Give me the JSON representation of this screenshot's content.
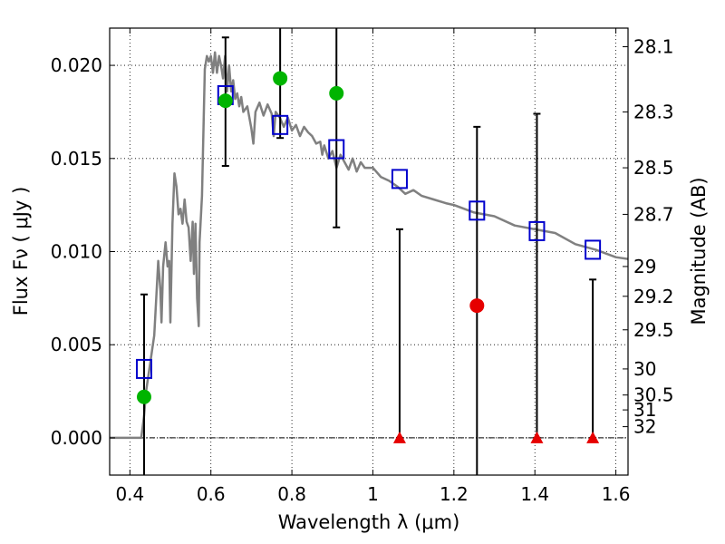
{
  "chart_data": {
    "type": "scatter",
    "xlabel": "Wavelength  λ (μm)",
    "ylabel": "Flux  Fν  ( μJy )",
    "y2label": "Magnitude (AB)",
    "xlim": [
      0.35,
      1.63
    ],
    "ylim": [
      -0.002,
      0.022
    ],
    "grid": true,
    "x_ticks": [
      0.4,
      0.6,
      0.8,
      1.0,
      1.2,
      1.4,
      1.6
    ],
    "x_tick_labels": [
      "0.4",
      "0.6",
      "0.8",
      "1",
      "1.2",
      "1.4",
      "1.6"
    ],
    "y_ticks": [
      0.0,
      0.005,
      0.01,
      0.015,
      0.02
    ],
    "y_tick_labels": [
      "0.000",
      "0.005",
      "0.010",
      "0.015",
      "0.020"
    ],
    "mag_ticks": [
      {
        "label": "28.1",
        "y": 0.021
      },
      {
        "label": "28.3",
        "y": 0.0175
      },
      {
        "label": "28.5",
        "y": 0.0145
      },
      {
        "label": "28.7",
        "y": 0.012
      },
      {
        "label": "29",
        "y": 0.0092
      },
      {
        "label": "29.2",
        "y": 0.0076
      },
      {
        "label": "29.5",
        "y": 0.0058
      },
      {
        "label": "30",
        "y": 0.0037
      },
      {
        "label": "30.5",
        "y": 0.0023
      },
      {
        "label": "31",
        "y": 0.0015
      },
      {
        "label": "32",
        "y": 0.0006
      }
    ],
    "colors": {
      "template": "#808080",
      "model": "#0000cc",
      "detection": "#00b400",
      "marginal": "#e60000",
      "upper_limit": "#e60000",
      "errorbar": "#000000"
    },
    "template_sed": {
      "name": "template",
      "points": [
        [
          0.35,
          0.0
        ],
        [
          0.42,
          0.0
        ],
        [
          0.428,
          0.0
        ],
        [
          0.435,
          0.0012
        ],
        [
          0.44,
          0.0025
        ],
        [
          0.45,
          0.004
        ],
        [
          0.46,
          0.0055
        ],
        [
          0.465,
          0.0075
        ],
        [
          0.47,
          0.0095
        ],
        [
          0.475,
          0.008
        ],
        [
          0.478,
          0.0062
        ],
        [
          0.482,
          0.0092
        ],
        [
          0.488,
          0.0105
        ],
        [
          0.493,
          0.0092
        ],
        [
          0.497,
          0.0095
        ],
        [
          0.5,
          0.0062
        ],
        [
          0.505,
          0.0115
        ],
        [
          0.51,
          0.0142
        ],
        [
          0.515,
          0.0135
        ],
        [
          0.52,
          0.012
        ],
        [
          0.525,
          0.0123
        ],
        [
          0.53,
          0.0115
        ],
        [
          0.535,
          0.0128
        ],
        [
          0.54,
          0.0116
        ],
        [
          0.545,
          0.0113
        ],
        [
          0.55,
          0.0095
        ],
        [
          0.555,
          0.0116
        ],
        [
          0.558,
          0.0088
        ],
        [
          0.562,
          0.0115
        ],
        [
          0.566,
          0.0075
        ],
        [
          0.57,
          0.006
        ],
        [
          0.572,
          0.0105
        ],
        [
          0.578,
          0.013
        ],
        [
          0.585,
          0.0198
        ],
        [
          0.59,
          0.0205
        ],
        [
          0.595,
          0.0202
        ],
        [
          0.6,
          0.0205
        ],
        [
          0.605,
          0.0196
        ],
        [
          0.61,
          0.0207
        ],
        [
          0.615,
          0.0196
        ],
        [
          0.62,
          0.0205
        ],
        [
          0.625,
          0.02
        ],
        [
          0.63,
          0.0193
        ],
        [
          0.635,
          0.0205
        ],
        [
          0.64,
          0.0186
        ],
        [
          0.645,
          0.02
        ],
        [
          0.65,
          0.0186
        ],
        [
          0.655,
          0.0192
        ],
        [
          0.66,
          0.0182
        ],
        [
          0.665,
          0.0185
        ],
        [
          0.67,
          0.0178
        ],
        [
          0.675,
          0.0183
        ],
        [
          0.68,
          0.0175
        ],
        [
          0.69,
          0.0178
        ],
        [
          0.7,
          0.0166
        ],
        [
          0.705,
          0.0158
        ],
        [
          0.71,
          0.0175
        ],
        [
          0.72,
          0.018
        ],
        [
          0.73,
          0.0173
        ],
        [
          0.74,
          0.0179
        ],
        [
          0.75,
          0.0174
        ],
        [
          0.755,
          0.0162
        ],
        [
          0.76,
          0.0175
        ],
        [
          0.77,
          0.0172
        ],
        [
          0.78,
          0.0167
        ],
        [
          0.79,
          0.0172
        ],
        [
          0.8,
          0.0165
        ],
        [
          0.81,
          0.0168
        ],
        [
          0.82,
          0.0162
        ],
        [
          0.83,
          0.0167
        ],
        [
          0.84,
          0.0164
        ],
        [
          0.85,
          0.0162
        ],
        [
          0.86,
          0.0158
        ],
        [
          0.87,
          0.0159
        ],
        [
          0.875,
          0.0152
        ],
        [
          0.88,
          0.0157
        ],
        [
          0.89,
          0.015
        ],
        [
          0.9,
          0.0154
        ],
        [
          0.91,
          0.0145
        ],
        [
          0.92,
          0.0152
        ],
        [
          0.93,
          0.0148
        ],
        [
          0.94,
          0.0144
        ],
        [
          0.95,
          0.015
        ],
        [
          0.96,
          0.0143
        ],
        [
          0.97,
          0.0148
        ],
        [
          0.98,
          0.0145
        ],
        [
          1.0,
          0.0145
        ],
        [
          1.02,
          0.014
        ],
        [
          1.04,
          0.0138
        ],
        [
          1.06,
          0.0135
        ],
        [
          1.08,
          0.0131
        ],
        [
          1.1,
          0.0133
        ],
        [
          1.12,
          0.013
        ],
        [
          1.15,
          0.0128
        ],
        [
          1.18,
          0.0126
        ],
        [
          1.2,
          0.0125
        ],
        [
          1.25,
          0.0121
        ],
        [
          1.3,
          0.0119
        ],
        [
          1.35,
          0.0114
        ],
        [
          1.4,
          0.0112
        ],
        [
          1.45,
          0.011
        ],
        [
          1.5,
          0.0104
        ],
        [
          1.55,
          0.0101
        ],
        [
          1.6,
          0.0097
        ],
        [
          1.63,
          0.0096
        ]
      ]
    },
    "series": [
      {
        "name": "model",
        "marker": "open-square",
        "points": [
          [
            0.435,
            0.0037
          ],
          [
            0.636,
            0.0184
          ],
          [
            0.771,
            0.0168
          ],
          [
            0.91,
            0.0155
          ],
          [
            1.066,
            0.0139
          ],
          [
            1.257,
            0.0122
          ],
          [
            1.405,
            0.0111
          ],
          [
            1.543,
            0.0101
          ]
        ]
      },
      {
        "name": "detection",
        "marker": "filled-circle",
        "points": [
          [
            0.435,
            0.0022
          ],
          [
            0.636,
            0.0181
          ],
          [
            0.771,
            0.0193
          ],
          [
            0.91,
            0.0185
          ]
        ]
      },
      {
        "name": "marginal",
        "marker": "filled-circle",
        "points": [
          [
            1.257,
            0.0071
          ]
        ]
      },
      {
        "name": "upper_limit",
        "marker": "filled-triangle",
        "points": [
          [
            1.066,
            0.0
          ],
          [
            1.405,
            0.0
          ],
          [
            1.543,
            0.0
          ]
        ]
      }
    ],
    "error_bars": [
      {
        "x": 0.435,
        "low": -0.003,
        "high": 0.0077
      },
      {
        "x": 0.636,
        "low": 0.0146,
        "high": 0.0215
      },
      {
        "x": 0.771,
        "low": 0.0161,
        "high": 0.023
      },
      {
        "x": 0.91,
        "low": 0.0113,
        "high": 0.023
      },
      {
        "x": 1.066,
        "low": 0.0,
        "high": 0.0112
      },
      {
        "x": 1.257,
        "low": -0.003,
        "high": 0.0167
      },
      {
        "x": 1.405,
        "low": 0.0,
        "high": 0.0174
      },
      {
        "x": 1.543,
        "low": 0.0,
        "high": 0.0085
      }
    ]
  }
}
